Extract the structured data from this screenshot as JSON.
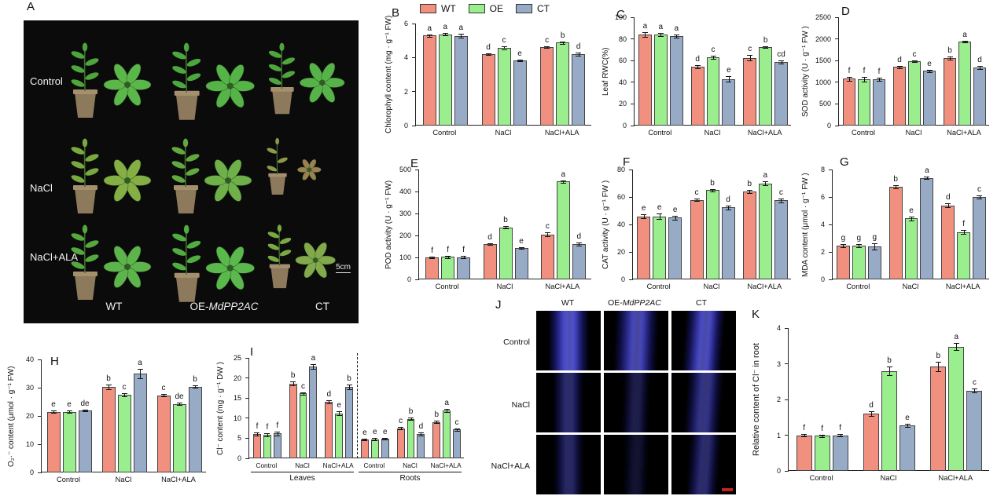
{
  "figure": {
    "wt_label": "WT",
    "oe_prefix": "OE-",
    "oe_gene": "MdPP2AC",
    "ct_label": "CT",
    "colors": {
      "WT": "#F2907F",
      "OE": "#9BEE8E",
      "CT": "#97ABC6"
    },
    "legend": {
      "items": [
        {
          "label": "WT",
          "color": "#F2907F"
        },
        {
          "label": "OE",
          "color": "#9BEE8E"
        },
        {
          "label": "CT",
          "color": "#97ABC6"
        }
      ]
    },
    "panel_a": {
      "label": "A",
      "row_labels": [
        "Control",
        "NaCl",
        "NaCl+ALA"
      ],
      "scale_bar": "5cm",
      "cells": [
        {
          "leaf": "#4da53b",
          "rosette": "#5cb74b",
          "size": 1.0,
          "withered": false
        },
        {
          "leaf": "#4aa83e",
          "rosette": "#55b348",
          "size": 1.03,
          "withered": false
        },
        {
          "leaf": "#4fa43d",
          "rosette": "#58b24a",
          "size": 0.95,
          "withered": false
        },
        {
          "leaf": "#79a93e",
          "rosette": "#85ae45",
          "size": 1.0,
          "withered": false
        },
        {
          "leaf": "#62a83f",
          "rosette": "#6fb04a",
          "size": 1.0,
          "withered": false
        },
        {
          "leaf": "#8c9a48",
          "rosette": "#9b8050",
          "size": 0.75,
          "withered": true
        },
        {
          "leaf": "#55a83e",
          "rosette": "#5eb44c",
          "size": 1.0,
          "withered": false
        },
        {
          "leaf": "#4fae3f",
          "rosette": "#5ab84d",
          "size": 1.03,
          "withered": false
        },
        {
          "leaf": "#7aa844",
          "rosette": "#83a94c",
          "size": 0.85,
          "withered": false
        }
      ]
    },
    "panel_j": {
      "label": "J",
      "row_labels": [
        "Control",
        "NaCl",
        "NaCl+ALA"
      ],
      "cells": [
        {
          "i": 0.9,
          "w": 62
        },
        {
          "i": 0.8,
          "w": 66
        },
        {
          "i": 0.85,
          "w": 60
        },
        {
          "i": 0.5,
          "w": 48
        },
        {
          "i": 0.35,
          "w": 42
        },
        {
          "i": 0.6,
          "w": 55
        },
        {
          "i": 0.45,
          "w": 46
        },
        {
          "i": 0.22,
          "w": 38
        },
        {
          "i": 0.5,
          "w": 48
        }
      ]
    }
  },
  "chart_data": [
    {
      "panel": "B",
      "type": "bar",
      "ylabel": "Chlorophyll content (mg · g⁻¹ FW)",
      "ylim": [
        0,
        6
      ],
      "yticks": [
        0,
        2,
        4,
        6
      ],
      "categories": [
        "Control",
        "NaCl",
        "NaCl+ALA"
      ],
      "series": [
        {
          "name": "WT",
          "values": [
            5.3,
            4.2,
            4.62
          ],
          "err": [
            0.07,
            0.06,
            0.05
          ],
          "letters": [
            "a",
            "d",
            "c"
          ]
        },
        {
          "name": "OE",
          "values": [
            5.37,
            4.57,
            4.87
          ],
          "err": [
            0.08,
            0.07,
            0.05
          ],
          "letters": [
            "a",
            "c",
            "b"
          ]
        },
        {
          "name": "CT",
          "values": [
            5.28,
            3.85,
            4.2
          ],
          "err": [
            0.12,
            0.05,
            0.08
          ],
          "letters": [
            "a",
            "e",
            "d"
          ]
        }
      ]
    },
    {
      "panel": "C",
      "type": "bar",
      "ylabel": "Leaf RWC(%)",
      "ylim": [
        0,
        100
      ],
      "yticks": [
        0,
        20,
        40,
        60,
        80,
        100
      ],
      "categories": [
        "Control",
        "NaCl",
        "NaCl+ALA"
      ],
      "series": [
        {
          "name": "WT",
          "values": [
            84,
            54.5,
            62.5
          ],
          "err": [
            2,
            1.5,
            2.5
          ],
          "letters": [
            "a",
            "d",
            "c"
          ]
        },
        {
          "name": "OE",
          "values": [
            84,
            63,
            72.5
          ],
          "err": [
            1.5,
            1.5,
            1
          ],
          "letters": [
            "a",
            "c",
            "b"
          ]
        },
        {
          "name": "CT",
          "values": [
            82.5,
            43,
            58.5
          ],
          "err": [
            1.5,
            2.5,
            1.5
          ],
          "letters": [
            "a",
            "e",
            "cd"
          ]
        }
      ]
    },
    {
      "panel": "D",
      "type": "bar",
      "ylabel": "SOD activity (U · g⁻¹ FW )",
      "ylim": [
        0,
        2500
      ],
      "yticks": [
        0,
        500,
        1000,
        1500,
        2000,
        2500
      ],
      "categories": [
        "Control",
        "NaCl",
        "NaCl+ALA"
      ],
      "series": [
        {
          "name": "WT",
          "values": [
            1080,
            1350,
            1560
          ],
          "err": [
            40,
            25,
            30
          ],
          "letters": [
            "f",
            "d",
            "b"
          ]
        },
        {
          "name": "OE",
          "values": [
            1070,
            1490,
            1940
          ],
          "err": [
            50,
            20,
            25
          ],
          "letters": [
            "f",
            "c",
            "a"
          ]
        },
        {
          "name": "CT",
          "values": [
            1070,
            1260,
            1340
          ],
          "err": [
            40,
            20,
            30
          ],
          "letters": [
            "f",
            "e",
            "d"
          ]
        }
      ]
    },
    {
      "panel": "E",
      "type": "bar",
      "ylabel": "POD activity (U · g⁻¹ FW)",
      "ylim": [
        0,
        500
      ],
      "yticks": [
        0,
        100,
        200,
        300,
        400,
        500
      ],
      "categories": [
        "Control",
        "NaCl",
        "NaCl+ALA"
      ],
      "series": [
        {
          "name": "WT",
          "values": [
            100,
            162,
            205
          ],
          "err": [
            5,
            4,
            8
          ],
          "letters": [
            "f",
            "d",
            "c"
          ]
        },
        {
          "name": "OE",
          "values": [
            102,
            237,
            445
          ],
          "err": [
            4,
            5,
            6
          ],
          "letters": [
            "f",
            "b",
            "a"
          ]
        },
        {
          "name": "CT",
          "values": [
            101,
            143,
            162
          ],
          "err": [
            6,
            4,
            7
          ],
          "letters": [
            "f",
            "e",
            "d"
          ]
        }
      ]
    },
    {
      "panel": "F",
      "type": "bar",
      "ylabel": "CAT activity (U · g⁻¹ FW )",
      "ylim": [
        0,
        80
      ],
      "yticks": [
        0,
        20,
        40,
        60,
        80
      ],
      "categories": [
        "Control",
        "NaCl",
        "NaCl+ALA"
      ],
      "series": [
        {
          "name": "WT",
          "values": [
            46,
            58,
            64
          ],
          "err": [
            1.5,
            1,
            1.2
          ],
          "letters": [
            "e",
            "c",
            "b"
          ]
        },
        {
          "name": "OE",
          "values": [
            46,
            65,
            70
          ],
          "err": [
            1.8,
            1,
            1.5
          ],
          "letters": [
            "e",
            "b",
            "a"
          ]
        },
        {
          "name": "CT",
          "values": [
            45,
            52.5,
            57.5
          ],
          "err": [
            1.5,
            1.5,
            1.5
          ],
          "letters": [
            "e",
            "d",
            "c"
          ]
        }
      ]
    },
    {
      "panel": "G",
      "type": "bar",
      "ylabel": "MDA content (μmol · g⁻¹ FW )",
      "ylim": [
        0,
        8
      ],
      "yticks": [
        0,
        2,
        4,
        6,
        8
      ],
      "categories": [
        "Control",
        "NaCl",
        "NaCl+ALA"
      ],
      "series": [
        {
          "name": "WT",
          "values": [
            2.45,
            6.75,
            5.4
          ],
          "err": [
            0.1,
            0.12,
            0.12
          ],
          "letters": [
            "g",
            "b",
            "d"
          ]
        },
        {
          "name": "OE",
          "values": [
            2.45,
            4.45,
            3.45
          ],
          "err": [
            0.12,
            0.15,
            0.15
          ],
          "letters": [
            "g",
            "e",
            "f"
          ]
        },
        {
          "name": "CT",
          "values": [
            2.4,
            7.4,
            6.0
          ],
          "err": [
            0.25,
            0.1,
            0.1
          ],
          "letters": [
            "g",
            "a",
            "c"
          ]
        }
      ]
    },
    {
      "panel": "H",
      "type": "bar",
      "ylabel": "O₂·⁻ content (μmol · g⁻¹ FW)",
      "ylim": [
        0,
        40
      ],
      "yticks": [
        0,
        10,
        20,
        30,
        40
      ],
      "categories": [
        "Control",
        "NaCl",
        "NaCl+ALA"
      ],
      "series": [
        {
          "name": "WT",
          "values": [
            21.5,
            30.3,
            27.3
          ],
          "err": [
            0.4,
            0.8,
            0.4
          ],
          "letters": [
            "e",
            "b",
            "c"
          ]
        },
        {
          "name": "OE",
          "values": [
            21.5,
            27.5,
            24.2
          ],
          "err": [
            0.5,
            0.6,
            0.4
          ],
          "letters": [
            "e",
            "c",
            "de"
          ]
        },
        {
          "name": "CT",
          "values": [
            22,
            35,
            30.4
          ],
          "err": [
            0.3,
            1.8,
            0.5
          ],
          "letters": [
            "de",
            "a",
            "b"
          ]
        }
      ]
    },
    {
      "panel": "I",
      "type": "bar",
      "ylabel": "Cl⁻ content (mg · g⁻¹ DW )",
      "ylim": [
        0,
        25
      ],
      "yticks": [
        0,
        5,
        10,
        15,
        20,
        25
      ],
      "categories": [
        "Control",
        "NaCl",
        "NaCl+ALA",
        "Control",
        "NaCl",
        "NaCl+ALA"
      ],
      "sections": [
        {
          "label": "Leaves",
          "from": 0,
          "to": 3
        },
        {
          "label": "Roots",
          "from": 3,
          "to": 6
        }
      ],
      "series": [
        {
          "name": "WT",
          "values": [
            6.0,
            18.6,
            14.0,
            4.7,
            7.5,
            9.0
          ],
          "err": [
            0.4,
            0.5,
            0.4,
            0.2,
            0.3,
            0.3
          ],
          "letters": [
            "f",
            "b",
            "d",
            "e",
            "c",
            "b"
          ]
        },
        {
          "name": "OE",
          "values": [
            5.8,
            16.2,
            11.2,
            4.7,
            9.8,
            12.0
          ],
          "err": [
            0.4,
            0.3,
            0.5,
            0.3,
            0.3,
            0.4
          ],
          "letters": [
            "f",
            "c",
            "e",
            "e",
            "b",
            "a"
          ]
        },
        {
          "name": "CT",
          "values": [
            6.2,
            22.8,
            17.8,
            4.8,
            6.0,
            7.2
          ],
          "err": [
            0.5,
            0.6,
            0.6,
            0.2,
            0.4,
            0.3
          ],
          "letters": [
            "f",
            "a",
            "b",
            "e",
            "d",
            "c"
          ]
        }
      ]
    },
    {
      "panel": "K",
      "type": "bar",
      "ylabel": "Relative content of Cl⁻ in root",
      "ylim": [
        0,
        4
      ],
      "yticks": [
        0,
        1,
        2,
        3,
        4
      ],
      "categories": [
        "Control",
        "NaCl",
        "NaCl+ALA"
      ],
      "series": [
        {
          "name": "WT",
          "values": [
            1.0,
            1.6,
            2.93
          ],
          "err": [
            0.03,
            0.07,
            0.13
          ],
          "letters": [
            "f",
            "d",
            "b"
          ]
        },
        {
          "name": "OE",
          "values": [
            0.98,
            2.8,
            3.48
          ],
          "err": [
            0.04,
            0.12,
            0.1
          ],
          "letters": [
            "f",
            "b",
            "a"
          ]
        },
        {
          "name": "CT",
          "values": [
            1.0,
            1.27,
            2.25
          ],
          "err": [
            0.03,
            0.04,
            0.05
          ],
          "letters": [
            "f",
            "e",
            "c"
          ]
        }
      ]
    }
  ]
}
